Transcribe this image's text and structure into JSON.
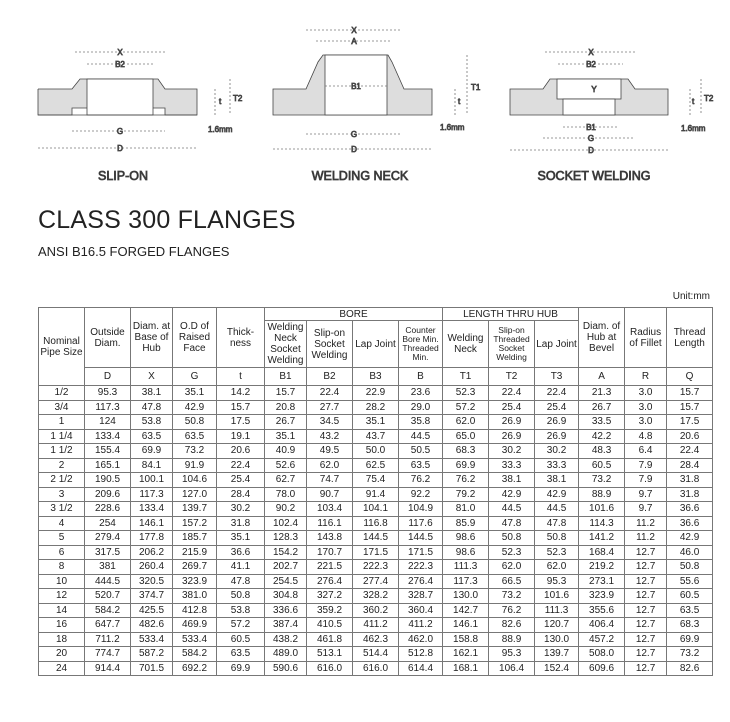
{
  "diagrams": [
    {
      "caption": "SLIP-ON",
      "labels": {
        "x": "X",
        "b2": "B2",
        "g": "G",
        "d": "D",
        "t": "t",
        "t2": "T2",
        "gap": "1.6mm"
      }
    },
    {
      "caption": "WELDING NECK",
      "labels": {
        "x": "X",
        "a": "A",
        "b1": "B1",
        "g": "G",
        "d": "D",
        "t": "t",
        "t1": "T1",
        "gap": "1.6mm"
      }
    },
    {
      "caption": "SOCKET WELDING",
      "labels": {
        "x": "X",
        "b2": "B2",
        "y": "Y",
        "b1": "B1",
        "g": "G",
        "d": "D",
        "t": "t",
        "t2": "T2",
        "gap": "1.6mm"
      }
    }
  ],
  "title": "CLASS 300 FLANGES",
  "subtitle": "ANSI B16.5 FORGED FLANGES",
  "unit": "Unit:mm",
  "table": {
    "groups": {
      "bore": "BORE",
      "length": "LENGTH THRU HUB"
    },
    "headers": [
      "Nominal Pipe Size",
      "Outside Diam.",
      "Diam. at Base of Hub",
      "O.D of Raised Face",
      "Thick-ness",
      "Welding Neck Socket Welding",
      "Slip-on Socket Welding",
      "Lap Joint",
      "Counter Bore Min. Threaded Min.",
      "Welding Neck",
      "Slip-on Threaded Socket Welding",
      "Lap Joint",
      "Diam. of Hub at Bevel",
      "Radius of Fillet",
      "Thread Length"
    ],
    "symbols": [
      "D",
      "X",
      "G",
      "t",
      "B1",
      "B2",
      "B3",
      "B",
      "T1",
      "T2",
      "T3",
      "A",
      "R",
      "Q"
    ],
    "rows": [
      [
        "1/2",
        "95.3",
        "38.1",
        "35.1",
        "14.2",
        "15.7",
        "22.4",
        "22.9",
        "23.6",
        "52.3",
        "22.4",
        "22.4",
        "21.3",
        "3.0",
        "15.7"
      ],
      [
        "3/4",
        "117.3",
        "47.8",
        "42.9",
        "15.7",
        "20.8",
        "27.7",
        "28.2",
        "29.0",
        "57.2",
        "25.4",
        "25.4",
        "26.7",
        "3.0",
        "15.7"
      ],
      [
        "1",
        "124",
        "53.8",
        "50.8",
        "17.5",
        "26.7",
        "34.5",
        "35.1",
        "35.8",
        "62.0",
        "26.9",
        "26.9",
        "33.5",
        "3.0",
        "17.5"
      ],
      [
        "1 1/4",
        "133.4",
        "63.5",
        "63.5",
        "19.1",
        "35.1",
        "43.2",
        "43.7",
        "44.5",
        "65.0",
        "26.9",
        "26.9",
        "42.2",
        "4.8",
        "20.6"
      ],
      [
        "1 1/2",
        "155.4",
        "69.9",
        "73.2",
        "20.6",
        "40.9",
        "49.5",
        "50.0",
        "50.5",
        "68.3",
        "30.2",
        "30.2",
        "48.3",
        "6.4",
        "22.4"
      ],
      [
        "2",
        "165.1",
        "84.1",
        "91.9",
        "22.4",
        "52.6",
        "62.0",
        "62.5",
        "63.5",
        "69.9",
        "33.3",
        "33.3",
        "60.5",
        "7.9",
        "28.4"
      ],
      [
        "2 1/2",
        "190.5",
        "100.1",
        "104.6",
        "25.4",
        "62.7",
        "74.7",
        "75.4",
        "76.2",
        "76.2",
        "38.1",
        "38.1",
        "73.2",
        "7.9",
        "31.8"
      ],
      [
        "3",
        "209.6",
        "117.3",
        "127.0",
        "28.4",
        "78.0",
        "90.7",
        "91.4",
        "92.2",
        "79.2",
        "42.9",
        "42.9",
        "88.9",
        "9.7",
        "31.8"
      ],
      [
        "3 1/2",
        "228.6",
        "133.4",
        "139.7",
        "30.2",
        "90.2",
        "103.4",
        "104.1",
        "104.9",
        "81.0",
        "44.5",
        "44.5",
        "101.6",
        "9.7",
        "36.6"
      ],
      [
        "4",
        "254",
        "146.1",
        "157.2",
        "31.8",
        "102.4",
        "116.1",
        "116.8",
        "117.6",
        "85.9",
        "47.8",
        "47.8",
        "114.3",
        "11.2",
        "36.6"
      ],
      [
        "5",
        "279.4",
        "177.8",
        "185.7",
        "35.1",
        "128.3",
        "143.8",
        "144.5",
        "144.5",
        "98.6",
        "50.8",
        "50.8",
        "141.2",
        "11.2",
        "42.9"
      ],
      [
        "6",
        "317.5",
        "206.2",
        "215.9",
        "36.6",
        "154.2",
        "170.7",
        "171.5",
        "171.5",
        "98.6",
        "52.3",
        "52.3",
        "168.4",
        "12.7",
        "46.0"
      ],
      [
        "8",
        "381",
        "260.4",
        "269.7",
        "41.1",
        "202.7",
        "221.5",
        "222.3",
        "222.3",
        "111.3",
        "62.0",
        "62.0",
        "219.2",
        "12.7",
        "50.8"
      ],
      [
        "10",
        "444.5",
        "320.5",
        "323.9",
        "47.8",
        "254.5",
        "276.4",
        "277.4",
        "276.4",
        "117.3",
        "66.5",
        "95.3",
        "273.1",
        "12.7",
        "55.6"
      ],
      [
        "12",
        "520.7",
        "374.7",
        "381.0",
        "50.8",
        "304.8",
        "327.2",
        "328.2",
        "328.7",
        "130.0",
        "73.2",
        "101.6",
        "323.9",
        "12.7",
        "60.5"
      ],
      [
        "14",
        "584.2",
        "425.5",
        "412.8",
        "53.8",
        "336.6",
        "359.2",
        "360.2",
        "360.4",
        "142.7",
        "76.2",
        "111.3",
        "355.6",
        "12.7",
        "63.5"
      ],
      [
        "16",
        "647.7",
        "482.6",
        "469.9",
        "57.2",
        "387.4",
        "410.5",
        "411.2",
        "411.2",
        "146.1",
        "82.6",
        "120.7",
        "406.4",
        "12.7",
        "68.3"
      ],
      [
        "18",
        "711.2",
        "533.4",
        "533.4",
        "60.5",
        "438.2",
        "461.8",
        "462.3",
        "462.0",
        "158.8",
        "88.9",
        "130.0",
        "457.2",
        "12.7",
        "69.9"
      ],
      [
        "20",
        "774.7",
        "587.2",
        "584.2",
        "63.5",
        "489.0",
        "513.1",
        "514.4",
        "512.8",
        "162.1",
        "95.3",
        "139.7",
        "508.0",
        "12.7",
        "73.2"
      ],
      [
        "24",
        "914.4",
        "701.5",
        "692.2",
        "69.9",
        "590.6",
        "616.0",
        "616.0",
        "614.4",
        "168.1",
        "106.4",
        "152.4",
        "609.6",
        "12.7",
        "82.6"
      ]
    ]
  }
}
